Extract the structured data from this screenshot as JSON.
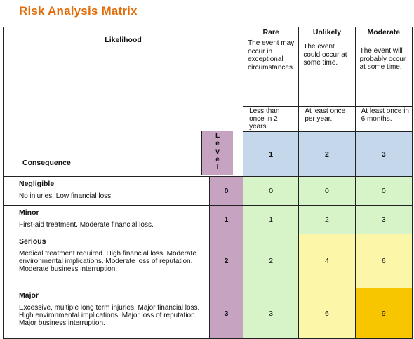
{
  "title": "Risk Analysis Matrix",
  "likelihood_label": "Likelihood",
  "consequence_label": "Consequence",
  "level_label": "Level",
  "likelihoods": [
    {
      "name": "Rare",
      "description": "The event may occur in exceptional circumstances.",
      "frequency": "Less than once in 2 years",
      "level": "1"
    },
    {
      "name": "Unlikely",
      "description": "The event could occur at some time.",
      "frequency": "At least once per year.",
      "level": "2"
    },
    {
      "name": "Moderate",
      "description": "The event will probably occur at some time.",
      "frequency": "At least once in 6 months.",
      "level": "3"
    }
  ],
  "consequences": [
    {
      "name": "Negligible",
      "description": "No injuries.  Low financial loss.",
      "level": "0",
      "scores": [
        "0",
        "0",
        "0"
      ]
    },
    {
      "name": "Minor",
      "description": "First-aid treatment.  Moderate financial loss.",
      "level": "1",
      "scores": [
        "1",
        "2",
        "3"
      ]
    },
    {
      "name": "Serious",
      "description": "Medical treatment required.  High financial loss. Moderate environmental implications.  Moderate loss of reputation.  Moderate business interruption.",
      "level": "2",
      "scores": [
        "2",
        "4",
        "6"
      ]
    },
    {
      "name": "Major",
      "description": "Excessive, multiple long term injuries.  Major financial loss.  High environmental implications. Major loss of reputation.  Major business interruption.",
      "level": "3",
      "scores": [
        "3",
        "6",
        "9"
      ]
    }
  ],
  "colors": {
    "title": "#e36c09",
    "level_column": "#c7a3c2",
    "likelihood_level_row": "#c5d7ea",
    "low_risk": "#d6f4c8",
    "medium_risk": "#fbf6a8",
    "high_risk": "#f7c600"
  }
}
